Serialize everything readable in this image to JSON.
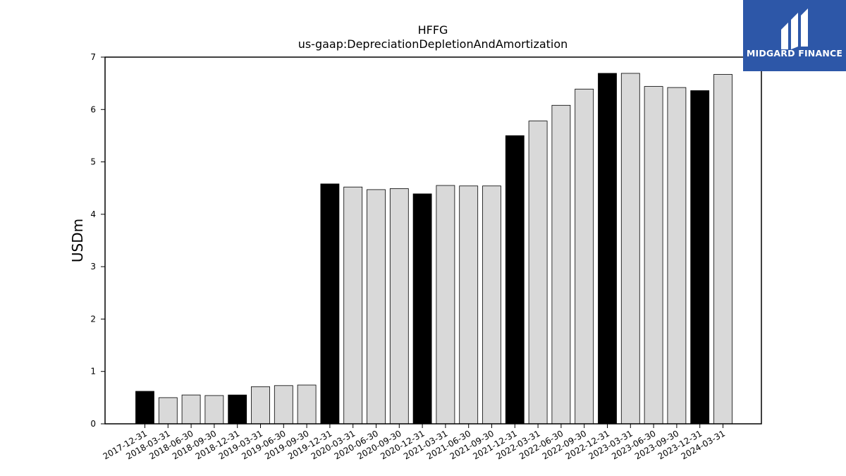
{
  "logo": {
    "text": "MIDGARD FINANCE",
    "icon": "midgard-logo-icon",
    "color": "#2d57a8"
  },
  "chart_data": {
    "type": "bar",
    "title": "HFFG",
    "subtitle": "us-gaap:DepreciationDepletionAndAmortization",
    "xlabel": "",
    "ylabel": "USDm",
    "ylim": [
      0,
      7
    ],
    "yticks": [
      0,
      1,
      2,
      3,
      4,
      5,
      6,
      7
    ],
    "grid": false,
    "legend": "none",
    "colors": {
      "year_end": "#000000",
      "quarter": "#d9d9d9",
      "edge": "#000000"
    },
    "categories": [
      "2017-12-31",
      "2018-03-31",
      "2018-06-30",
      "2018-09-30",
      "2018-12-31",
      "2019-03-31",
      "2019-06-30",
      "2019-09-30",
      "2019-12-31",
      "2020-03-31",
      "2020-06-30",
      "2020-09-30",
      "2020-12-31",
      "2021-03-31",
      "2021-06-30",
      "2021-09-30",
      "2021-12-31",
      "2022-03-31",
      "2022-06-30",
      "2022-09-30",
      "2022-12-31",
      "2023-03-31",
      "2023-06-30",
      "2023-09-30",
      "2023-12-31",
      "2024-03-31"
    ],
    "values": [
      0.62,
      0.5,
      0.55,
      0.54,
      0.55,
      0.71,
      0.73,
      0.74,
      4.58,
      4.52,
      4.47,
      4.49,
      4.39,
      4.55,
      4.54,
      4.54,
      5.5,
      5.78,
      6.08,
      6.39,
      6.69,
      6.69,
      6.44,
      6.42,
      6.36,
      6.67
    ],
    "year_end": [
      true,
      false,
      false,
      false,
      true,
      false,
      false,
      false,
      true,
      false,
      false,
      false,
      true,
      false,
      false,
      false,
      true,
      false,
      false,
      false,
      true,
      false,
      false,
      false,
      true,
      false
    ]
  }
}
